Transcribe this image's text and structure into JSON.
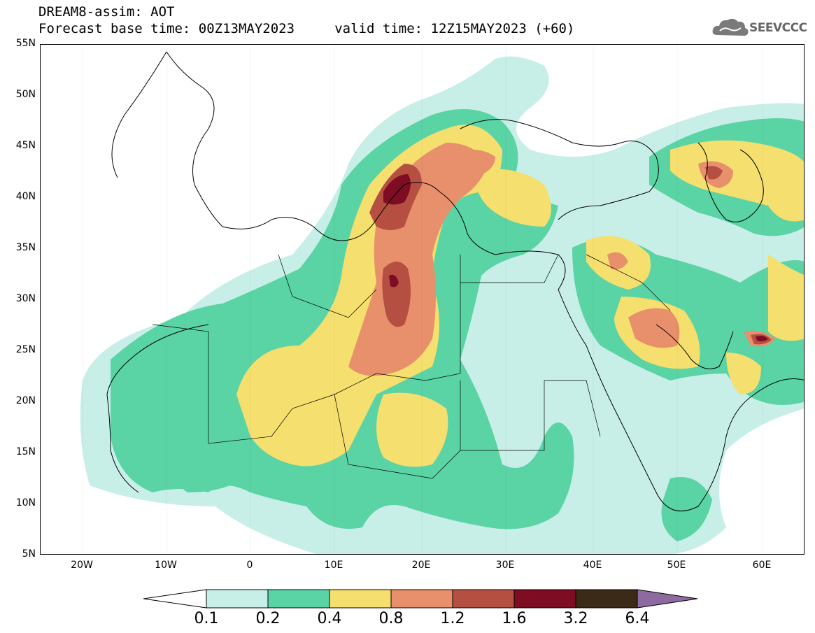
{
  "header": {
    "line1": "DREAM8-assim: AOT",
    "line2": "Forecast base time: 00Z13MAY2023     valid time: 12Z15MAY2023 (+60)"
  },
  "logo": {
    "text": "SEEVCCC",
    "icon": "cloud-icon"
  },
  "axes": {
    "lat_labels": [
      "55N",
      "50N",
      "45N",
      "40N",
      "35N",
      "30N",
      "25N",
      "20N",
      "15N",
      "10N",
      "5N"
    ],
    "lon_labels": [
      "20W",
      "10W",
      "0",
      "10E",
      "20E",
      "30E",
      "40E",
      "50E",
      "60E"
    ]
  },
  "colorbar": {
    "labels": [
      "0.1",
      "0.2",
      "0.4",
      "0.8",
      "1.2",
      "1.6",
      "3.2",
      "6.4"
    ],
    "colors": [
      "#ffffff",
      "#c7efe8",
      "#5ad3a5",
      "#f5df6e",
      "#e8906b",
      "#b54f42",
      "#7e0d24",
      "#3b2a17",
      "#8d6a9f"
    ]
  }
}
